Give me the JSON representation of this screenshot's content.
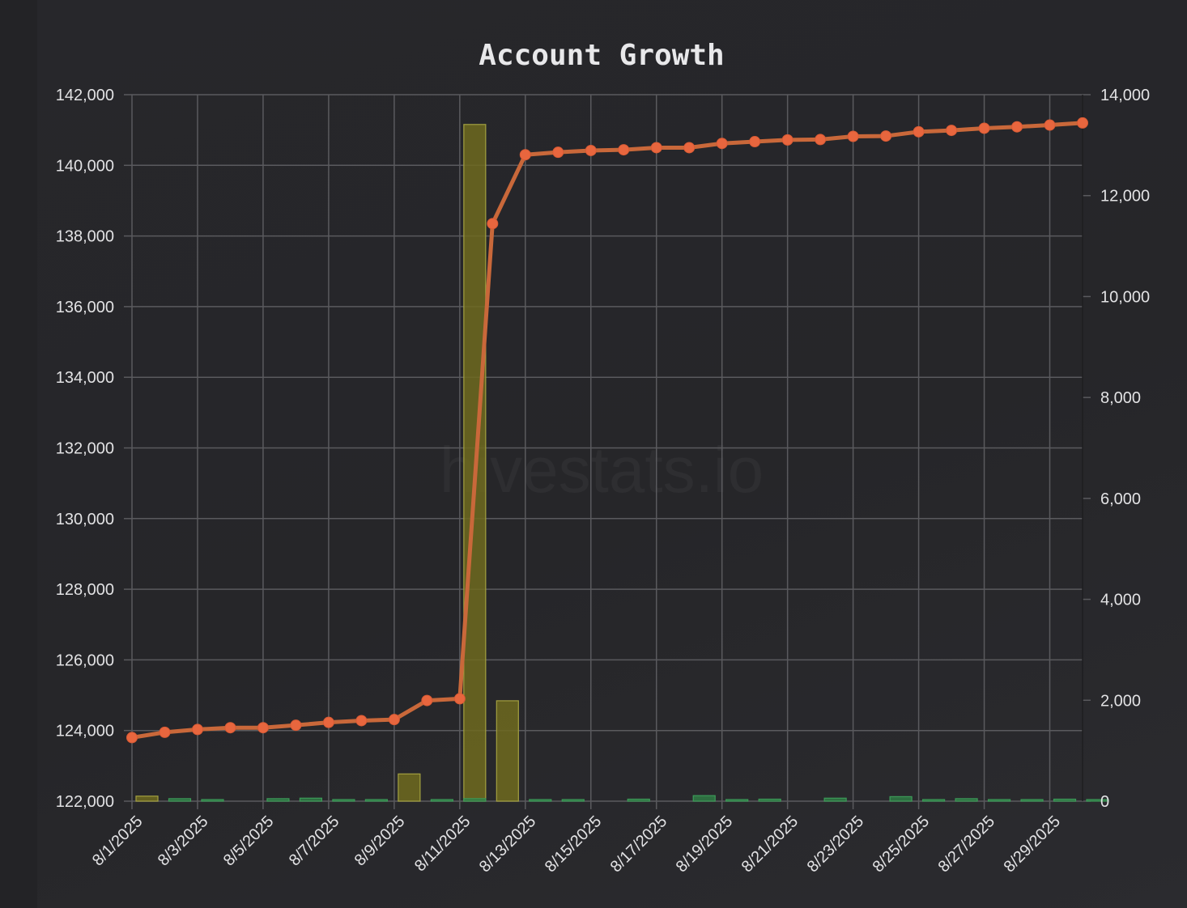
{
  "watermark": "hivestats.io",
  "chart_data": {
    "type": "line",
    "title": "Account Growth",
    "colors": {
      "line": "#c9683a",
      "point": "#e8663e",
      "bar_yellow": "#6e6a1e",
      "bar_yellow_stroke": "#a3a040",
      "bar_green": "#2f7a45",
      "bar_green_stroke": "#3c9a58",
      "grid": "#5a5a5e"
    },
    "x": [
      "8/1/2025",
      "8/2/2025",
      "8/3/2025",
      "8/4/2025",
      "8/5/2025",
      "8/6/2025",
      "8/7/2025",
      "8/8/2025",
      "8/9/2025",
      "8/10/2025",
      "8/11/2025",
      "8/12/2025",
      "8/13/2025",
      "8/14/2025",
      "8/15/2025",
      "8/16/2025",
      "8/17/2025",
      "8/18/2025",
      "8/19/2025",
      "8/20/2025",
      "8/21/2025",
      "8/22/2025",
      "8/23/2025",
      "8/24/2025",
      "8/25/2025",
      "8/26/2025",
      "8/27/2025",
      "8/28/2025",
      "8/29/2025",
      "8/30/2025"
    ],
    "x_tick_labels": [
      "8/1/2025",
      "8/3/2025",
      "8/5/2025",
      "8/7/2025",
      "8/9/2025",
      "8/11/2025",
      "8/13/2025",
      "8/15/2025",
      "8/17/2025",
      "8/19/2025",
      "8/21/2025",
      "8/23/2025",
      "8/25/2025",
      "8/27/2025",
      "8/29/2025"
    ],
    "y_left": {
      "lim": [
        122000,
        142000
      ],
      "ticks": [
        "122,000",
        "124,000",
        "126,000",
        "128,000",
        "130,000",
        "132,000",
        "134,000",
        "136,000",
        "138,000",
        "140,000",
        "142,000"
      ]
    },
    "y_right": {
      "lim": [
        0,
        14000
      ],
      "ticks": [
        "0",
        "2,000",
        "4,000",
        "6,000",
        "8,000",
        "10,000",
        "12,000",
        "14,000"
      ]
    },
    "series": [
      {
        "type": "line",
        "axis": "left",
        "values": [
          123800,
          123950,
          124030,
          124080,
          124080,
          124150,
          124230,
          124280,
          124310,
          124850,
          124900,
          138350,
          140300,
          140370,
          140420,
          140440,
          140500,
          140500,
          140620,
          140670,
          140720,
          140730,
          140820,
          140830,
          140950,
          140990,
          141050,
          141090,
          141140,
          141200
        ]
      },
      {
        "type": "bar",
        "axis": "right",
        "color": "yellow",
        "values": [
          100,
          0,
          0,
          0,
          0,
          0,
          0,
          0,
          540,
          0,
          13410,
          1990,
          0,
          0,
          0,
          0,
          0,
          0,
          0,
          0,
          0,
          0,
          0,
          0,
          0,
          0,
          0,
          0,
          0,
          0
        ]
      },
      {
        "type": "bar",
        "axis": "right",
        "color": "green",
        "values": [
          0,
          50,
          20,
          0,
          50,
          60,
          30,
          20,
          0,
          20,
          50,
          0,
          20,
          30,
          0,
          40,
          0,
          110,
          30,
          40,
          0,
          60,
          0,
          90,
          20,
          50,
          20,
          30,
          40,
          20
        ]
      }
    ],
    "grid": true
  }
}
